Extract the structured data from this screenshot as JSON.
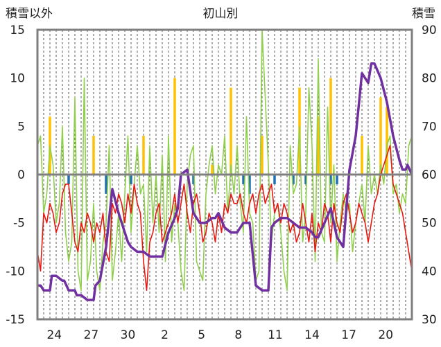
{
  "chart_data": {
    "type": "line",
    "title": "初山別",
    "ylabel_left": "積雪以外",
    "ylabel_right": "積雪",
    "x_ticks": [
      "24",
      "27",
      "30",
      "2",
      "5",
      "8",
      "11",
      "14",
      "17",
      "20"
    ],
    "y_left_ticks": [
      15,
      10,
      5,
      0,
      -5,
      -10,
      -15
    ],
    "y_right_ticks": [
      90,
      80,
      70,
      60,
      50,
      40,
      30
    ],
    "ylim_left": [
      -15,
      15
    ],
    "ylim_right": [
      30,
      90
    ],
    "grid": "vertical-dashed",
    "colors": {
      "temperature": "#e8170f",
      "precip_positive": "#ffc000",
      "precip_negative": "#1f6fb6",
      "green_series": "#8fcf4c",
      "snow_depth": "#7030a0",
      "axis": "#7f7f7f",
      "grid": "#333333"
    },
    "series": [
      {
        "key": "snow_depth",
        "axis": "right",
        "x": [
          0,
          0.5,
          1,
          2,
          2.3,
          3,
          4,
          4.3,
          5,
          6,
          6.3,
          7,
          8,
          9,
          9.3,
          10,
          11,
          12,
          13,
          14,
          14.5,
          15,
          16,
          17,
          18,
          19,
          20,
          21,
          22,
          22.5,
          23,
          24,
          25,
          26,
          27,
          28,
          28.5,
          29,
          30,
          31,
          32,
          33,
          34,
          35,
          36,
          37,
          37.5,
          38,
          39,
          40,
          41,
          42,
          43,
          44,
          44.5,
          45,
          46,
          47,
          48,
          49,
          50,
          51,
          52,
          53,
          53.5,
          54,
          55,
          56,
          57,
          58,
          58.5,
          59,
          59.3,
          60
        ],
        "y": [
          37,
          37,
          36,
          36,
          39,
          39,
          38,
          38,
          36,
          36,
          35,
          35,
          34,
          34,
          37,
          38,
          45,
          57,
          52,
          48,
          46,
          45,
          44,
          44,
          43,
          43,
          43,
          48,
          51,
          53,
          60,
          61,
          52,
          50,
          50,
          51,
          51,
          52,
          49,
          48,
          48,
          50,
          50,
          37,
          36,
          36,
          49,
          50,
          51,
          51,
          50,
          49,
          49,
          48,
          47,
          47,
          50,
          53,
          47,
          45,
          61,
          68,
          81,
          79,
          83,
          83,
          80,
          75,
          68,
          63,
          61,
          61,
          62,
          60
        ]
      },
      {
        "key": "temperature",
        "axis": "left",
        "x": [
          0,
          0.5,
          1,
          1.5,
          2,
          2.5,
          3,
          3.5,
          4,
          4.5,
          5,
          5.5,
          6,
          6.5,
          7,
          7.5,
          8,
          8.5,
          9,
          9.5,
          10,
          10.5,
          11,
          11.5,
          12,
          12.5,
          13,
          13.5,
          14,
          14.5,
          15,
          15.5,
          16,
          16.5,
          17,
          17.5,
          18,
          18.5,
          19,
          19.5,
          20,
          20.5,
          21,
          21.5,
          22,
          22.5,
          23,
          23.5,
          24,
          24.5,
          25,
          25.5,
          26,
          26.5,
          27,
          27.5,
          28,
          28.5,
          29,
          29.5,
          30,
          30.5,
          31,
          31.5,
          32,
          32.5,
          33,
          33.5,
          34,
          34.5,
          35,
          35.5,
          36,
          36.5,
          37,
          37.5,
          38,
          38.5,
          39,
          39.5,
          40,
          40.5,
          41,
          41.5,
          42,
          42.5,
          43,
          43.5,
          44,
          44.5,
          45,
          45.5,
          46,
          46.5,
          47,
          47.5,
          48,
          48.5,
          49,
          49.5,
          50,
          50.5,
          51,
          51.5,
          52,
          52.5,
          53,
          53.5,
          54,
          54.5,
          55,
          55.5,
          56,
          56.5,
          57,
          57.5,
          58,
          58.5,
          59,
          59.5,
          60
        ],
        "y": [
          -8,
          -10,
          -4,
          -5,
          -3,
          -4,
          -6,
          -5,
          -2,
          -1,
          -1,
          -4,
          -7,
          -8,
          -5,
          -6,
          -4,
          -5,
          -7,
          -5,
          -6,
          -4,
          -8,
          -9,
          -3,
          -4,
          -2,
          -3,
          -5,
          -2,
          -4,
          -1,
          -3,
          -4,
          -9,
          -12,
          -7,
          -6,
          -4,
          -3,
          -7,
          -6,
          -5,
          -4,
          -2,
          -5,
          -3,
          -1,
          -4,
          -6,
          -3,
          -2,
          -4,
          -7,
          -6,
          -4,
          -5,
          -7,
          -4,
          -6,
          -3,
          -4,
          -2,
          -3,
          -3,
          -2,
          -4,
          -5,
          -3,
          -2,
          -4,
          -2,
          -1,
          -3,
          -2,
          -1,
          -4,
          -3,
          -5,
          -3,
          -4,
          -6,
          -5,
          -7,
          -6,
          -3,
          -5,
          -7,
          -4,
          -8,
          -5,
          -6,
          -3,
          -4,
          -7,
          -3,
          -5,
          -6,
          -3,
          -2,
          -4,
          -6,
          -5,
          -3,
          -4,
          -5,
          -7,
          -5,
          -3,
          -2,
          0,
          1,
          2,
          3,
          -1,
          -2,
          -3,
          -4,
          -6,
          -8,
          -10
        ]
      },
      {
        "key": "green_series",
        "axis": "left",
        "x": [
          0,
          0.5,
          1,
          1.5,
          2,
          2.5,
          3,
          3.5,
          4,
          4.5,
          5,
          5.5,
          6,
          6.5,
          7,
          7.5,
          8,
          8.5,
          9,
          9.5,
          10,
          10.5,
          11,
          11.5,
          12,
          12.5,
          13,
          13.5,
          14,
          14.5,
          15,
          15.5,
          16,
          16.5,
          17,
          17.5,
          18,
          18.5,
          19,
          19.5,
          20,
          20.5,
          21,
          21.5,
          22,
          22.5,
          23,
          23.5,
          24,
          24.5,
          25,
          25.5,
          26,
          26.5,
          27,
          27.5,
          28,
          28.5,
          29,
          29.5,
          30,
          30.5,
          31,
          31.5,
          32,
          32.5,
          33,
          33.5,
          34,
          34.5,
          35,
          35.5,
          36,
          36.5,
          37,
          37.5,
          38,
          38.5,
          39,
          39.5,
          40,
          40.5,
          41,
          41.5,
          42,
          42.5,
          43,
          43.5,
          44,
          44.5,
          45,
          45.5,
          46,
          46.5,
          47,
          47.5,
          48,
          48.5,
          49,
          49.5,
          50,
          50.5,
          51,
          51.5,
          52,
          52.5,
          53,
          53.5,
          54,
          54.5,
          55,
          55.5,
          56,
          56.5,
          57,
          57.5,
          58,
          58.5,
          59,
          59.5,
          60
        ],
        "y": [
          3,
          4,
          -4,
          -2,
          3,
          1,
          -5,
          -3,
          5,
          -6,
          -9,
          -7,
          8,
          -10,
          -12,
          10,
          -11,
          -9,
          -3,
          -10,
          -12,
          -7,
          -5,
          3,
          -11,
          -8,
          -4,
          -9,
          -2,
          4,
          -6,
          -1,
          3,
          -2,
          -1,
          -8,
          3,
          -5,
          0,
          -6,
          2,
          -9,
          4,
          -7,
          -3,
          -5,
          -10,
          -12,
          -1,
          2,
          3,
          -9,
          -10,
          -11,
          -2,
          1,
          3,
          -2,
          1,
          0,
          4,
          -4,
          1,
          -2,
          3,
          -3,
          -6,
          6,
          -4,
          -5,
          -11,
          -10,
          15,
          8,
          1,
          -7,
          -4,
          -3,
          -6,
          -10,
          -12,
          3,
          -2,
          -1,
          5,
          -7,
          -4,
          9,
          3,
          -9,
          12,
          -6,
          -7,
          7,
          -5,
          1,
          -9,
          -5,
          -2,
          -4,
          -3,
          -8,
          -5,
          -3,
          -1,
          -5,
          3,
          -2,
          0,
          -2,
          1,
          -1,
          3,
          4,
          -2,
          -1,
          -4,
          -2,
          -3,
          3,
          4
        ]
      },
      {
        "key": "precip_positive",
        "axis": "left",
        "x": [
          2,
          9,
          17,
          22,
          28,
          31,
          36,
          42,
          45,
          47,
          52,
          55,
          56
        ],
        "y": [
          6,
          4,
          4,
          10,
          1,
          9,
          4,
          9,
          6,
          10,
          4,
          8,
          7
        ]
      },
      {
        "key": "precip_negative",
        "axis": "left",
        "x": [
          5,
          11,
          15,
          25,
          33,
          34,
          38,
          41,
          43,
          47,
          48
        ],
        "y": [
          -1,
          -2,
          -1,
          -1,
          -1,
          -2,
          -1,
          -1,
          -1,
          -1,
          -1
        ]
      }
    ]
  }
}
